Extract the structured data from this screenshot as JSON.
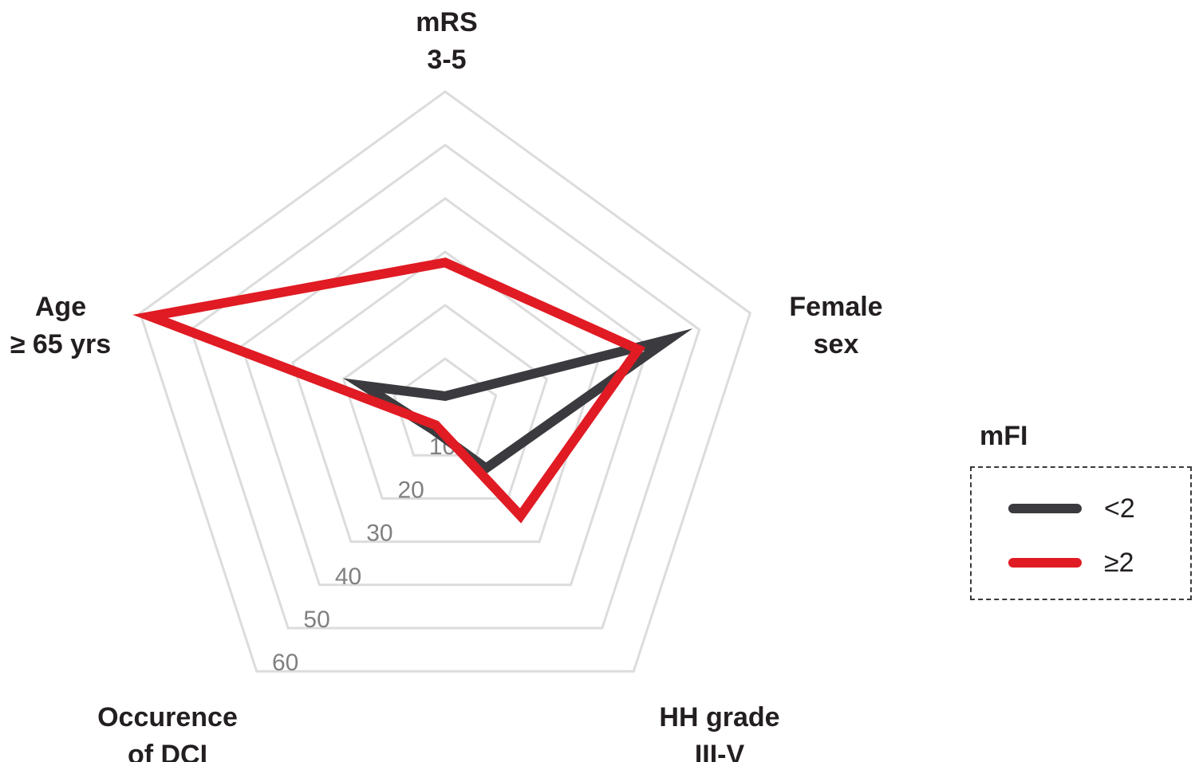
{
  "chart_data": {
    "type": "radar",
    "axes": [
      {
        "label_lines": [
          "mRS",
          "3-5"
        ]
      },
      {
        "label_lines": [
          "Female",
          "sex"
        ]
      },
      {
        "label_lines": [
          "HH grade",
          "III-V"
        ]
      },
      {
        "label_lines": [
          "Occurence",
          "of DCI"
        ]
      },
      {
        "label_lines": [
          "Age",
          "≥ 65 yrs"
        ]
      }
    ],
    "ticks": [
      "10",
      "20",
      "30",
      "40",
      "50",
      "60"
    ],
    "rmax": 60,
    "series": [
      {
        "name": "<2",
        "color": "#3b3b3f",
        "values": [
          3,
          44,
          13,
          4,
          16
        ]
      },
      {
        "name": "≥2",
        "color": "#e01b23",
        "values": [
          28,
          38,
          24,
          3,
          58
        ]
      }
    ],
    "legend": {
      "title": "mFI",
      "placement": "right"
    }
  }
}
